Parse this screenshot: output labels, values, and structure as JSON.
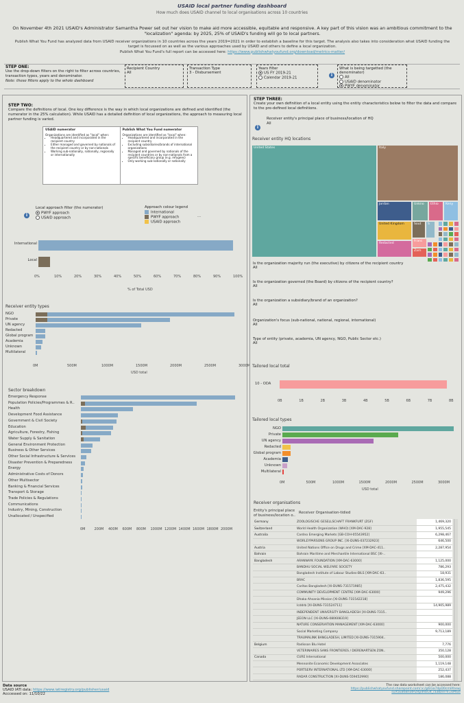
{
  "header": {
    "title": "USAID local partner funding dashboard",
    "subtitle": "How much does USAID channel to local organisations across 10 countries"
  },
  "intro": {
    "line": "On November 4th 2021 USAID's Administrator Samantha Power set out her vision to make aid more accessible, equitable and responsive. A key part of this vision was an ambitious commitment to the \"localization\" agenda: by 2025, 25% of USAID's funding will go to local partners.",
    "analysis": "Publish What You Fund has analyzed data from USAID receiver organizations in 10 countries across the years 2019=2021 in order to establish a baseline for this target. The analysis also takes into consideration what USAID funding the target is focussed on as well as the various approaches used by USAID and others to define a local organization.",
    "report_prefix": "Publish What You Fund's full report can be accessed here: ",
    "report_link": "https://www.publishwhatyoufund.org/download/metrics-matter/"
  },
  "step_one": {
    "title": "STEP ONE:",
    "text": "Use the drop-down filters on the right to filter across countries, transaction types, years and denominator.",
    "note": "Note: these filters apply to the whole dashboard"
  },
  "filters": {
    "recipient_label": "Recipient Country",
    "recipient_value": "All",
    "tx_label": "Transaction Type",
    "tx_value": "3 - Disbursement",
    "years_label": "Years filter",
    "year_opt1": "US FY 2019-21",
    "year_opt2": "Calendar 2019-21",
    "denom_label": "What is being targetted (the denominator)",
    "denom_opt1": "All",
    "denom_opt2": "USAID denominator",
    "denom_opt3": "PWYF denominator"
  },
  "step_two": {
    "title": "STEP TWO:",
    "text": "Compare the definitions of local. One key difference is the way in which local organizations are defined and identified (the numerator in the 25% calculation). While USAID has a detailed definition of local organizations, the approach to measuring local partner funding is varied."
  },
  "definitions": {
    "usaid_title": "USAID numerator",
    "usaid_lead": "Organizations are identified as \"local\" when:",
    "usaid_items": [
      "Headquartered and incorporated in the recipient country",
      "Either managed and governed by nationals of the recipient country or by non-nationals",
      "Working sub-nationally, nationally, regionally or internationally"
    ],
    "pwyf_title": "Publish What You Fund numerator",
    "pwyf_lead": "Organizations are identified as \"local\" when:",
    "pwyf_items": [
      "Headquartered and incorporated in the recipient country",
      "Excluding subsidiaries/brands of international organizations",
      "Managed and governed by nationals of the recipient countries or by non-nationals from a specific beneficiary group (e.g. refugees)",
      "Only working sub-nationally or nationally"
    ]
  },
  "approach_filter": {
    "label": "Local approach filter (the numerator)",
    "opt1": "PWYF approach",
    "opt2": "USAID approach",
    "legend_title": "Approach colour legend",
    "legend": [
      "International",
      "PWYF approach",
      "USAID approach"
    ],
    "more": "..."
  },
  "colors": {
    "international": "#86a9c6",
    "pwyf": "#7b6e5a",
    "usaid": "#f1c24a",
    "teal": "#5fa79f",
    "brown": "#9a7a62",
    "navy": "#3e5d8c",
    "pink": "#f79c9c"
  },
  "pct_chart": {
    "categories": [
      "International",
      "Local"
    ],
    "values": [
      98,
      6
    ],
    "ticks": [
      "0%",
      "10%",
      "20%",
      "30%",
      "40%",
      "50%",
      "60%",
      "70%",
      "80%",
      "90%",
      "100%"
    ],
    "xlabel": "% of Total USD"
  },
  "receiver_types": {
    "title": "Receiver entity types",
    "categories": [
      "NGO",
      "Private",
      "UN agency",
      "Redacted",
      "Global program",
      "Academia",
      "Unknown",
      "Multilateral"
    ],
    "international": [
      3250,
      2200,
      1730,
      160,
      160,
      110,
      90,
      20
    ],
    "local": [
      190,
      190,
      0,
      0,
      0,
      0,
      0,
      0
    ],
    "ticks": [
      "0M",
      "500M",
      "1000M",
      "1500M",
      "2000M",
      "2500M",
      "3000M"
    ],
    "xlabel": "USD total"
  },
  "sectors": {
    "title": "Sector breakdown",
    "categories": [
      "Emergency Response",
      "Population Policies/Programmes & R..",
      "Health",
      "Development Food Assistance",
      "Government & Civil Society",
      "Education",
      "Agriculture, Forestry, Fishing",
      "Water Supply & Sanitation",
      "General Environment Protection",
      "Business & Other Services",
      "Other Social Infrastructure & Services",
      "Disaster Prevention & Preparedness",
      "Energy",
      "Administrative Costs of Donors",
      "Other Multisector",
      "Banking & Financial Services",
      "Transport & Storage",
      "Trade Policies & Regulations",
      "Communications",
      "Industry, Mining, Construction",
      "Unallocated / Unspecified"
    ],
    "international": [
      2200,
      1650,
      740,
      530,
      510,
      460,
      430,
      270,
      170,
      150,
      80,
      60,
      40,
      25,
      20,
      15,
      10,
      8,
      5,
      4,
      2
    ],
    "local": [
      0,
      60,
      0,
      0,
      20,
      70,
      20,
      40,
      0,
      0,
      0,
      0,
      0,
      0,
      0,
      0,
      0,
      0,
      0,
      0,
      0
    ],
    "ticks": [
      "0M",
      "200M",
      "400M",
      "600M",
      "800M",
      "1000M",
      "1200M",
      "1400M",
      "1600M",
      "1800M",
      "2000M"
    ]
  },
  "step_three": {
    "title": "STEP THREE:",
    "text": "Create your own definition of a local entity using the entity characteristics below to filter the data and compare to the pre-defined local definitions.",
    "hq_label": "Receiver entity's principal place of business/location of HQ",
    "hq_value": "All"
  },
  "treemap": {
    "title": "Receiver entity HQ locations",
    "cells": [
      {
        "name": "United States",
        "color": "#5fa79f"
      },
      {
        "name": "Italy",
        "color": "#9a7a62"
      },
      {
        "name": "Jordan",
        "color": "#3e5d8c"
      },
      {
        "name": "Unkno",
        "color": "#77a79e"
      },
      {
        "name": "Ethio",
        "color": "#d96a8a"
      },
      {
        "name": "Keny",
        "color": "#8fbfe2"
      },
      {
        "name": "United Kingdom",
        "color": "#e9b63e"
      },
      {
        "name": "Sout",
        "color": "#7b6e5a"
      },
      {
        "name": "S",
        "color": "#93b9c9"
      },
      {
        "name": "Redacted",
        "color": "#d46b9e"
      },
      {
        "name": "Franc",
        "color": "#f79c9c"
      },
      {
        "name": "Zam",
        "color": "#e46158"
      }
    ]
  },
  "questions": [
    {
      "q": "Is the organization majority run (the executive) by citizens of the recipient country",
      "a": "All"
    },
    {
      "q": "Is the organization governed (the Board) by citizens of the recipient country?",
      "a": "All"
    },
    {
      "q": "Is the organization a subsidiary/brand of an organization?",
      "a": "All"
    },
    {
      "q": "Organization's focus (sub-national, national, regional, international)",
      "a": "All"
    },
    {
      "q": "Type of entity (private, academia, UN agency, NGO, Public Sector etc.)",
      "a": "All"
    }
  ],
  "tailored_total": {
    "title": "Tailored local total",
    "category": "10 - ODA",
    "value": 7.8,
    "ticks": [
      "0B",
      "1B",
      "2B",
      "3B",
      "4B",
      "5B",
      "6B",
      "7B",
      "8B"
    ]
  },
  "tailored_types": {
    "title": "Tailored local types",
    "categories": [
      "NGO",
      "Private",
      "UN agency",
      "Redacted",
      "Global program",
      "Academia",
      "Unknown",
      "Multilateral"
    ],
    "values": [
      3250,
      2200,
      1730,
      160,
      160,
      110,
      90,
      20
    ],
    "colors": [
      "#5fa79f",
      "#5aaa4f",
      "#a96bb5",
      "#f1c24a",
      "#f28e2b",
      "#3e5d8c",
      "#c9a0c9",
      "#e4433f"
    ],
    "ticks": [
      "0M",
      "500M",
      "1000M",
      "1500M",
      "2000M",
      "2500M",
      "3000M"
    ],
    "xlabel": "USD total"
  },
  "receivers": {
    "title": "Receiver organisations",
    "col1": "Entity's principal place of business/location o..",
    "col2": "Receiver Organisation-tidied",
    "rows": [
      [
        "Germany",
        "ZOOLOGISCHE GESELLSCHAFT FRANKFURT (ZGF)",
        "1,469,320"
      ],
      [
        "Switzerland",
        "World Health Organization (WHO) [XM-DAC-928]",
        "1,955,545"
      ],
      [
        "Australia",
        "Cardno Emerging Markets [GB-COH-05543952]",
        "6,298,467"
      ],
      [
        "",
        "WORLEYPARSONS GROUP INC. [XI-DUNS-037232923]",
        "646,500"
      ],
      [
        "Austria",
        "United Nations Office on Drugs and Crime [XM-DAC-411..",
        "2,287,954"
      ],
      [
        "Bahrain",
        "Bahrain Maritime and Merchantile International BSC [XI-..",
        ""
      ],
      [
        "Bangladesh",
        "ARANNAYK FOUNDATION [XM-DAC-63000]",
        "1,125,000"
      ],
      [
        "",
        "BANDHU SOCIAL WELFARE SOCIETY",
        "786,293"
      ],
      [
        "",
        "Bangladesh Institute of Labour Studies-BILS [XM-DAC-63..",
        "18,931"
      ],
      [
        "",
        "BRAC",
        "1,836,595"
      ],
      [
        "",
        "Caritas Bangladesh [XI-DUNS-731571985]",
        "2,475,432"
      ],
      [
        "",
        "COMMUNITY DEVELOPMENT CENTRE [XM-DAC-63000]",
        "949,296"
      ],
      [
        "",
        "Dhaka Ahsania Mission [XI-DUNS-731542218]",
        ""
      ],
      [
        "",
        "Icddrb [XI-DUNS-731524711]",
        "14,905,989"
      ],
      [
        "",
        "INDEPENDENT UNIVERSITY BANGLADESH [XI-DUNS-7315..",
        ""
      ],
      [
        "",
        "JEEON LLC [XI-DUNS-080608319]",
        ""
      ],
      [
        "",
        "NATURE CONSERVATION MANAGEMENT [XM-DAC-63000]",
        "900,000"
      ],
      [
        "",
        "Social Marketing Company",
        "9,713,189"
      ],
      [
        "",
        "TRAUMALINK BANGLADESH, LIMITED [XI-DUNS-7315904..",
        ""
      ],
      [
        "Belgium",
        "Radisson Blu Hotel",
        "7,776"
      ],
      [
        "",
        "VETERINAIRES SANS FRONTIERES / DIERENARTSEN ZON..",
        "350,128"
      ],
      [
        "Canada",
        "CURE International",
        "500,000"
      ],
      [
        "",
        "Mennonite Economic Development Associates",
        "1,119,148"
      ],
      [
        "",
        "PORTSERV INTERNATIONAL LTD [XM-DAC-63000]",
        "252,437"
      ],
      [
        "",
        "RADAR CONSTRUCTION [XI-DUNS-559452990]",
        "186,088"
      ],
      [
        "Czech Republic",
        "People in Need [CZ-ICO-25755277]",
        "1,624,120"
      ]
    ]
  },
  "footer": {
    "src_title": "Data source",
    "src_prefix": "USAID IATI data: ",
    "src_link": "https://www.iatiregistry.org/publisher/usaid",
    "accessed": "Acccessed on: 11/10/22",
    "raw_line": "The raw data worksheet can be accessed here:",
    "raw_link": "https://publishwhatyoufund.sharepoint.com/:x:/g/EGa74pD0cmlAhewjsuX5EB6BnotPZRpdhbGIt_cEBb/ie?e=kMSie"
  }
}
